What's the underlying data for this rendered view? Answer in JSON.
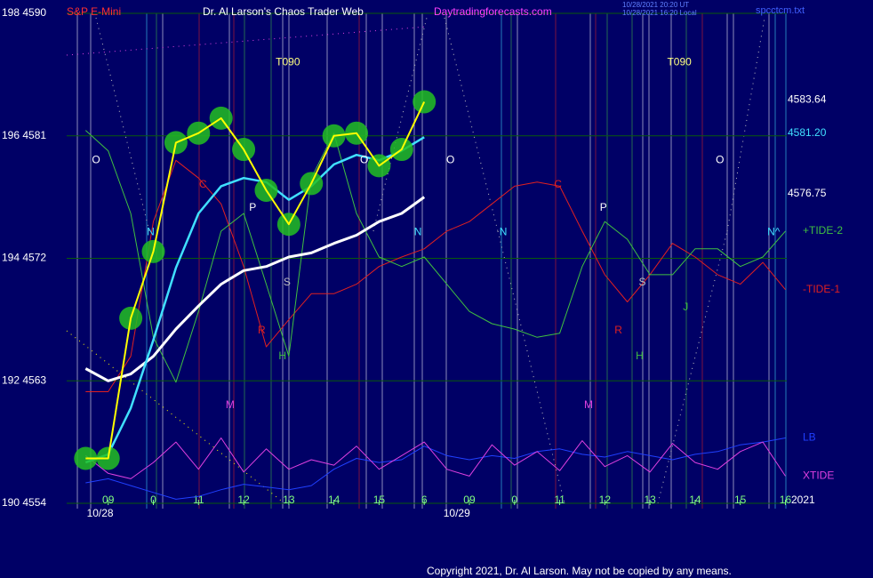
{
  "chart_data": {
    "type": "line",
    "title": "Dr. Al Larson's Chaos Trader Web",
    "instrument": "S&P E-Mini",
    "site": "Daytradingforecasts.com",
    "stamp_ut": "10/28/2021 20:20 UT",
    "stamp_local": "10/28/2021 16:20 Local",
    "file": "spcctcm.txt",
    "year": "2021",
    "copyright": "Copyright 2021, Dr. Al Larson. May not be copied by any means.",
    "grid": true,
    "xlim": [
      8.08,
      24.03
    ],
    "ylim": [
      4554,
      4590
    ],
    "yticks": [
      {
        "value": 4554,
        "label": "190  4554"
      },
      {
        "value": 4563,
        "label": "192  4563"
      },
      {
        "value": 4572,
        "label": "194  4572"
      },
      {
        "value": 4581,
        "label": "196  4581"
      },
      {
        "value": 4590,
        "label": "198  4590"
      }
    ],
    "xticks": [
      {
        "value": 9,
        "label": "09"
      },
      {
        "value": 10,
        "label": "0"
      },
      11,
      12,
      13,
      14,
      15,
      {
        "value": 16,
        "label": "6"
      },
      {
        "value": 17,
        "label": "09"
      },
      {
        "value": 18,
        "label": "0"
      },
      {
        "value": 19,
        "label": "11"
      },
      {
        "value": 20,
        "label": "12"
      },
      {
        "value": 21,
        "label": "13"
      },
      {
        "value": 22,
        "label": "14"
      },
      {
        "value": 23,
        "label": "15"
      },
      {
        "value": 24,
        "label": "16"
      }
    ],
    "dates": [
      {
        "label": "10/28",
        "x": 8.82
      },
      {
        "label": "10/29",
        "x": 16.72
      }
    ],
    "price_labels": [
      {
        "value": 4583.64,
        "label": "4583.64",
        "color": "#ffffff"
      },
      {
        "value": 4581.2,
        "label": "4581.20",
        "color": "#40e0ff"
      },
      {
        "value": 4576.75,
        "label": "4576.75",
        "color": "#ffffff"
      }
    ],
    "x": [
      8.5,
      9,
      9.5,
      10,
      10.5,
      11,
      11.5,
      12,
      12.5,
      13,
      13.5,
      14,
      14.5,
      15,
      15.5,
      16,
      16.5,
      17,
      17.5,
      18,
      18.5,
      19,
      19.5,
      20,
      20.5,
      21,
      21.5,
      22,
      22.5,
      23,
      23.5,
      24
    ],
    "series": [
      {
        "name": "-TIDE-1",
        "color": "#e02020",
        "width": 1,
        "values": [
          4562.2,
          4562.2,
          4564.8,
          4574.7,
          4579.2,
          4577.9,
          4576,
          4571.4,
          4565.5,
          4567.5,
          4569.4,
          4569.4,
          4570.1,
          4571.4,
          4572.1,
          4572.7,
          4574,
          4574.7,
          4576,
          4577.3,
          4577.6,
          4577.3,
          4574,
          4570.8,
          4568.8,
          4570.8,
          4573.1,
          4572.1,
          4570.8,
          4570.1,
          4571.7,
          4569.7
        ]
      },
      {
        "name": "+TIDE-2",
        "color": "#40c040",
        "width": 1,
        "values": [
          4581.4,
          4579.9,
          4575.3,
          4566.2,
          4562.9,
          4568.1,
          4574,
          4575.3,
          4570.1,
          4564.8,
          4577.9,
          4581.2,
          4575.3,
          4572.1,
          4571.4,
          4572.1,
          4570.1,
          4568.1,
          4567.2,
          4566.8,
          4566.2,
          4566.5,
          4571.4,
          4574.7,
          4573.4,
          4570.8,
          4570.8,
          4572.7,
          4572.7,
          4571.4,
          4572.1,
          4574
        ]
      },
      {
        "name": "LB",
        "color": "#2040ff",
        "width": 1,
        "values": [
          4555.5,
          4555.8,
          4555.3,
          4554.8,
          4554.3,
          4554.5,
          4555,
          4555.4,
          4555.2,
          4555,
          4555.3,
          4556.5,
          4557.3,
          4557,
          4557.2,
          4558.2,
          4557.5,
          4557.2,
          4557.5,
          4557.3,
          4557.8,
          4558,
          4557.6,
          4557.4,
          4557.8,
          4557.5,
          4557.2,
          4557.6,
          4557.8,
          4558.3,
          4558.5,
          4558.8
        ]
      },
      {
        "name": "XTIDE",
        "color": "#e040e0",
        "width": 1,
        "values": [
          4557.5,
          4556.2,
          4555.8,
          4557,
          4558.5,
          4556.5,
          4558.8,
          4556.3,
          4558,
          4556.5,
          4557.2,
          4556.8,
          4558.2,
          4556.5,
          4557.5,
          4558.5,
          4556.5,
          4556,
          4558.3,
          4556.8,
          4557.8,
          4556.4,
          4558.6,
          4556.7,
          4557.5,
          4556.3,
          4558.4,
          4557,
          4556.5,
          4557.8,
          4558.5,
          4556
        ]
      },
      {
        "color": "#ffffff",
        "width": 3,
        "values": [
          4563.9,
          4563,
          4563.5,
          4564.8,
          4566.8,
          4568.5,
          4570.1,
          4571.1,
          4571.4,
          4572.1,
          4572.4,
          4573.1,
          4573.7,
          4574.7,
          4575.3,
          4576.5,
          null,
          null,
          null,
          null,
          null,
          null,
          null,
          null,
          null,
          null,
          null,
          null,
          null,
          null,
          null,
          null
        ]
      },
      {
        "color": "#40e0ff",
        "width": 2.5,
        "values": [
          4557,
          4557.6,
          4561,
          4566,
          4571.3,
          4575.3,
          4577.3,
          4577.9,
          4577.6,
          4576.3,
          4577.3,
          4578.9,
          4579.6,
          4579.2,
          4579.9,
          4580.9,
          null,
          null,
          null,
          null,
          null,
          null,
          null,
          null,
          null,
          null,
          null,
          null,
          null,
          null,
          null,
          null
        ]
      },
      {
        "color": "#ffff00",
        "width": 2,
        "marker_color": "#22c022",
        "values": [
          4557.3,
          4557.3,
          4567.6,
          4572.5,
          4580.5,
          4581.2,
          4582.3,
          4580,
          4577,
          4574.5,
          4577.5,
          4581,
          4581.2,
          4578.8,
          4580,
          4583.5,
          null,
          null,
          null,
          null,
          null,
          null,
          null,
          null,
          null,
          null,
          null,
          null,
          null,
          null,
          null,
          null
        ]
      }
    ],
    "annotations": [
      {
        "text": "O",
        "x": 8.73,
        "y": 4579.2,
        "color": "#ffffff"
      },
      {
        "text": "N",
        "x": 9.94,
        "y": 4573.9,
        "color": "#40e0ff"
      },
      {
        "text": "C",
        "x": 11.1,
        "y": 4577.4,
        "color": "#e02020"
      },
      {
        "text": "M",
        "x": 11.7,
        "y": 4561.2,
        "color": "#e040e0"
      },
      {
        "text": "P",
        "x": 12.2,
        "y": 4575.7,
        "color": "#ffffff"
      },
      {
        "text": "R",
        "x": 12.4,
        "y": 4566.7,
        "color": "#e02020"
      },
      {
        "text": "H",
        "x": 12.86,
        "y": 4564.8,
        "color": "#40c040"
      },
      {
        "text": "S",
        "x": 12.96,
        "y": 4570.2,
        "color": "#c0c0c0"
      },
      {
        "text": "T090",
        "x": 12.98,
        "y": 4586.4,
        "color": "#ffff80"
      },
      {
        "text": "O",
        "x": 14.67,
        "y": 4579.2,
        "color": "#ffffff"
      },
      {
        "text": "N",
        "x": 15.86,
        "y": 4573.9,
        "color": "#40e0ff"
      },
      {
        "text": "O",
        "x": 16.58,
        "y": 4579.2,
        "color": "#ffffff"
      },
      {
        "text": "N",
        "x": 17.75,
        "y": 4573.9,
        "color": "#40e0ff"
      },
      {
        "text": "C",
        "x": 18.96,
        "y": 4577.4,
        "color": "#e02020"
      },
      {
        "text": "M",
        "x": 19.64,
        "y": 4561.2,
        "color": "#e040e0"
      },
      {
        "text": "P",
        "x": 19.97,
        "y": 4575.7,
        "color": "#ffffff"
      },
      {
        "text": "R",
        "x": 20.3,
        "y": 4566.7,
        "color": "#e02020"
      },
      {
        "text": "H",
        "x": 20.77,
        "y": 4564.8,
        "color": "#40c040"
      },
      {
        "text": "S",
        "x": 20.83,
        "y": 4570.2,
        "color": "#c0c0c0"
      },
      {
        "text": "T090",
        "x": 21.65,
        "y": 4586.4,
        "color": "#ffff80"
      },
      {
        "text": "J",
        "x": 21.79,
        "y": 4568.4,
        "color": "#40c040"
      },
      {
        "text": "O",
        "x": 22.55,
        "y": 4579.2,
        "color": "#ffffff"
      },
      {
        "text": "N^",
        "x": 23.74,
        "y": 4573.9,
        "color": "#40e0ff"
      }
    ]
  }
}
